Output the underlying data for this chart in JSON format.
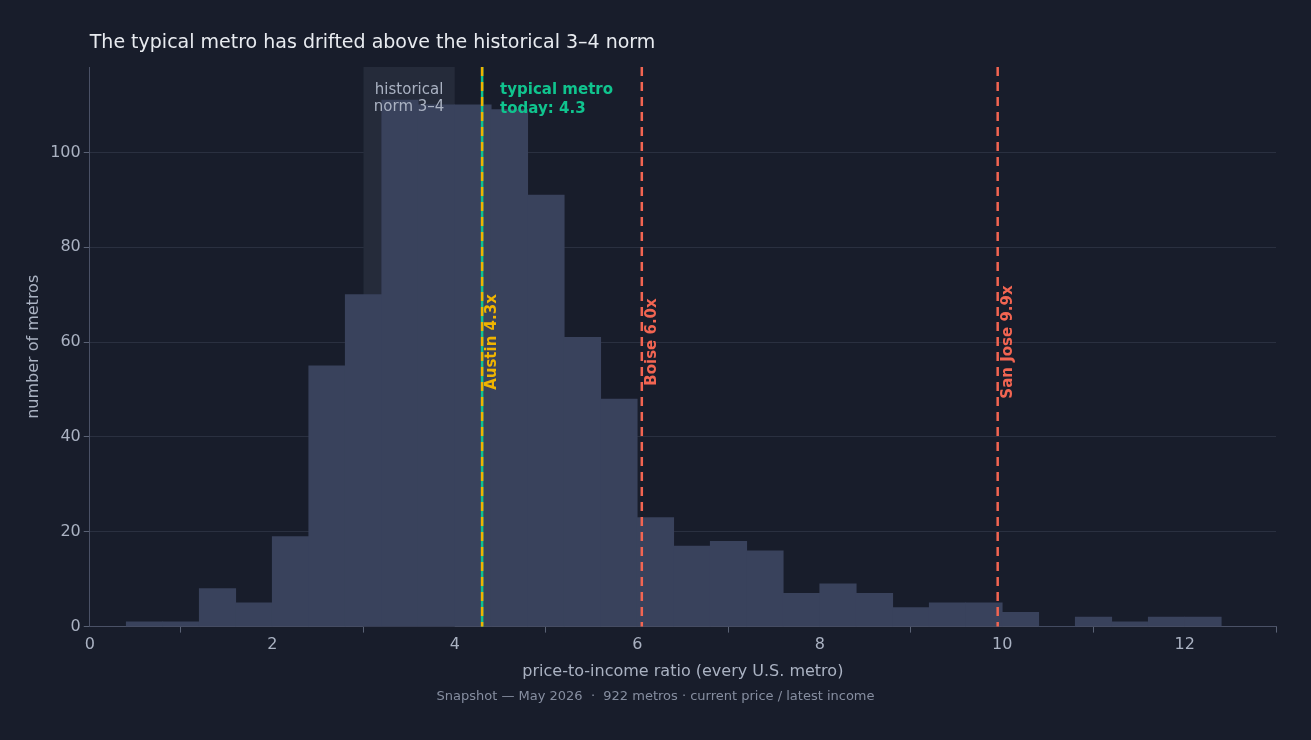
{
  "chart_data": {
    "type": "histogram",
    "title": "The typical metro has drifted above the historical 3–4 norm",
    "xlabel": "price-to-income ratio (every U.S. metro)",
    "ylabel": "number of metros",
    "bins": [
      0.4,
      0.8,
      1.2,
      1.6,
      2.0,
      2.4,
      2.8,
      3.2,
      3.6,
      4.0,
      4.4,
      4.8,
      5.2,
      5.6,
      6.0,
      6.4,
      6.8,
      7.2,
      7.6,
      8.0,
      8.4,
      8.8,
      9.2,
      9.6,
      10.0,
      10.4,
      10.8,
      11.2,
      11.6,
      12.0,
      12.4
    ],
    "values": [
      1,
      1,
      8,
      5,
      19,
      55,
      70,
      111,
      110,
      110,
      109,
      91,
      61,
      48,
      23,
      17,
      18,
      16,
      7,
      9,
      7,
      4,
      5,
      5,
      3,
      0,
      2,
      1,
      2,
      2
    ],
    "color": "#39425c",
    "xlim": [
      0,
      13
    ],
    "xticks": [
      0,
      2,
      4,
      6,
      8,
      10,
      12
    ],
    "ylim": [
      0,
      118
    ],
    "yticks": [
      0,
      20,
      40,
      60,
      80,
      100
    ],
    "grid": "y",
    "legend": false,
    "bands": [
      {
        "axis": "x",
        "from": 3,
        "to": 4,
        "label": "historical norm 3–4",
        "color": "#252b3a"
      }
    ],
    "ref_lines": [
      {
        "axis": "x",
        "value": 4.3,
        "label": "typical metro today: 4.3",
        "color": "#10c48e",
        "line_style": "solid"
      },
      {
        "axis": "x",
        "value": 4.3,
        "label": "Austin 4.3x",
        "color": "#f0b400",
        "line_style": "dashed"
      },
      {
        "axis": "x",
        "value": 6.05,
        "label": "Boise 6.0x",
        "color": "#f26552",
        "line_style": "dashed"
      },
      {
        "axis": "x",
        "value": 9.95,
        "label": "San Jose 9.9x",
        "color": "#f26552",
        "line_style": "dashed"
      }
    ],
    "annotations": [
      "Snapshot — May 2026  ·  922 metros · current price / latest income"
    ]
  }
}
